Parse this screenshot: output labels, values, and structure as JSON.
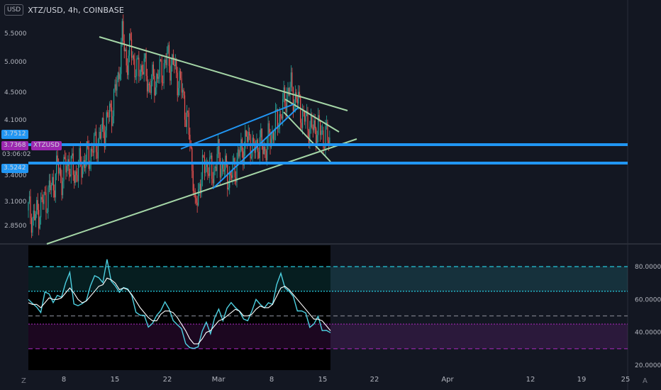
{
  "header": {
    "currency_badge": "USD",
    "title": "XTZ/USD, 4h, COINBASE"
  },
  "colors": {
    "bg": "#131722",
    "up": "#26a69a",
    "down": "#ef5350",
    "trend": "#a5d6a7",
    "channel": "#2196f3",
    "osc": "#4dd0e1",
    "signal": "#ffffff",
    "band_upper": "#26c6da",
    "band_lower": "#9c27b0"
  },
  "price_labels": [
    {
      "text": "3.7512",
      "color": "#2196f3"
    },
    {
      "text": "3.7368",
      "color": "#9c27b0"
    },
    {
      "text": "XTZUSD",
      "color": "#9c27b0"
    },
    {
      "text": "03:06:02",
      "color": "#131722"
    },
    {
      "text": "3.5242",
      "color": "#2196f3"
    }
  ],
  "corner": {
    "left": "Z",
    "right": "A"
  },
  "chart_data": [
    {
      "type": "candlestick",
      "title": "XTZ/USD, 4h, COINBASE",
      "y_axis": {
        "ticks": [
          "5.5000",
          "5.0000",
          "4.5000",
          "4.1000",
          "3.4000",
          "3.1000",
          "2.8500"
        ],
        "scale": "log"
      },
      "x_axis": {
        "ticks": [
          "8",
          "15",
          "22",
          "Mar",
          "8",
          "15",
          "22",
          "Apr",
          "12",
          "19",
          "25"
        ]
      },
      "close_path": [
        [
          0,
          3.0
        ],
        [
          6,
          2.92
        ],
        [
          12,
          3.05
        ],
        [
          18,
          3.15
        ],
        [
          24,
          3.3
        ],
        [
          28,
          3.48
        ],
        [
          32,
          3.35
        ],
        [
          38,
          3.55
        ],
        [
          44,
          3.4
        ],
        [
          50,
          3.5
        ],
        [
          58,
          3.62
        ],
        [
          64,
          3.75
        ],
        [
          72,
          3.95
        ],
        [
          80,
          4.25
        ],
        [
          86,
          4.7
        ],
        [
          90,
          5.45
        ],
        [
          94,
          5.0
        ],
        [
          98,
          5.25
        ],
        [
          104,
          4.8
        ],
        [
          110,
          4.95
        ],
        [
          116,
          4.6
        ],
        [
          122,
          4.7
        ],
        [
          128,
          4.85
        ],
        [
          134,
          5.05
        ],
        [
          140,
          4.9
        ],
        [
          146,
          4.6
        ],
        [
          150,
          4.3
        ],
        [
          154,
          3.9
        ],
        [
          158,
          3.4
        ],
        [
          160,
          2.95
        ],
        [
          164,
          3.3
        ],
        [
          170,
          3.55
        ],
        [
          176,
          3.4
        ],
        [
          182,
          3.6
        ],
        [
          188,
          3.45
        ],
        [
          194,
          3.35
        ],
        [
          200,
          3.55
        ],
        [
          206,
          3.75
        ],
        [
          212,
          3.85
        ],
        [
          216,
          3.65
        ],
        [
          220,
          3.8
        ],
        [
          226,
          3.7
        ],
        [
          232,
          3.85
        ],
        [
          238,
          4.05
        ],
        [
          244,
          4.25
        ],
        [
          248,
          4.5
        ],
        [
          252,
          4.55
        ],
        [
          256,
          4.4
        ],
        [
          260,
          4.3
        ],
        [
          264,
          4.1
        ],
        [
          268,
          4.05
        ],
        [
          272,
          3.95
        ],
        [
          276,
          4.0
        ],
        [
          282,
          3.9
        ],
        [
          286,
          3.85
        ],
        [
          290,
          3.8
        ]
      ],
      "horizontal_levels": [
        3.7512,
        3.5242
      ],
      "trendlines": [
        "upper descending",
        "lower ascending",
        "rising channel",
        "falling wedge"
      ]
    },
    {
      "type": "line",
      "series": [
        {
          "values": [
            60,
            55,
            58,
            52,
            62,
            66,
            58,
            60,
            64,
            70,
            74,
            60,
            56,
            55,
            62,
            68,
            72,
            76,
            70,
            82,
            74,
            68,
            62,
            70,
            66,
            60,
            55,
            50,
            48,
            46,
            45,
            48,
            56,
            58,
            52,
            50,
            44,
            40,
            36,
            30,
            28,
            34,
            40,
            44,
            42,
            48,
            52,
            50,
            54,
            56,
            58,
            52,
            46,
            50,
            52,
            58,
            60,
            54,
            56,
            60,
            68,
            74,
            70,
            64,
            60,
            56,
            52,
            50,
            46,
            44,
            48,
            44,
            40,
            38
          ]
        },
        {
          "values": [
            58,
            57,
            57,
            55,
            58,
            61,
            60,
            60,
            61,
            64,
            67,
            64,
            60,
            58,
            59,
            62,
            65,
            68,
            69,
            73,
            72,
            70,
            66,
            67,
            66,
            63,
            59,
            55,
            52,
            49,
            47,
            47,
            51,
            53,
            53,
            52,
            49,
            45,
            41,
            36,
            33,
            33,
            36,
            40,
            41,
            44,
            47,
            48,
            50,
            52,
            54,
            53,
            50,
            50,
            51,
            54,
            56,
            55,
            55,
            57,
            62,
            67,
            68,
            66,
            63,
            60,
            57,
            54,
            51,
            48,
            48,
            47,
            44,
            41
          ]
        }
      ],
      "y_axis": {
        "ticks": [
          "80.0000",
          "60.0000",
          "40.0000",
          "20.0000"
        ]
      },
      "levels": [
        80,
        65,
        50,
        45,
        30
      ]
    }
  ]
}
